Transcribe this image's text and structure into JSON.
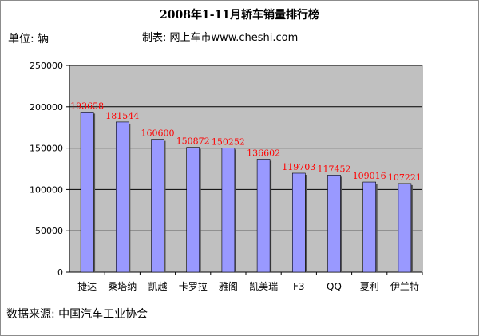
{
  "title": "2008年1-11月轿车销量排行榜",
  "unit_label": "单位: 辆",
  "maker_label": "制表: 网上车市www.cheshi.com",
  "source_label": "数据来源: 中国汽车工业协会",
  "colors": {
    "plot_bg": "#c0c0c0",
    "bar": "#9999ff",
    "data_label": "#ff0000",
    "grid": "#000000"
  },
  "chart_data": {
    "type": "bar",
    "title": "2008年1-11月轿车销量排行榜",
    "xlabel": "",
    "ylabel": "单位: 辆",
    "ylim": [
      0,
      250000
    ],
    "yticks": [
      0,
      50000,
      100000,
      150000,
      200000,
      250000
    ],
    "grid": true,
    "categories": [
      "捷达",
      "桑塔纳",
      "凯越",
      "卡罗拉",
      "雅阁",
      "凯美瑞",
      "F3",
      "QQ",
      "夏利",
      "伊兰特"
    ],
    "values": [
      193658,
      181544,
      160600,
      150872,
      150252,
      136602,
      119703,
      117452,
      109016,
      107221
    ]
  }
}
